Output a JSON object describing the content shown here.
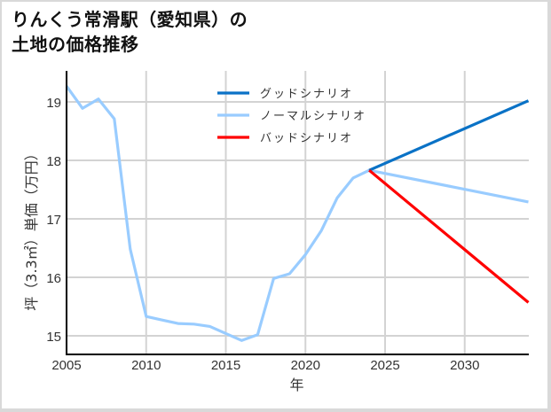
{
  "title": {
    "line1": "りんくう常滑駅（愛知県）の",
    "line2": "土地の価格推移"
  },
  "colors": {
    "good": "#0a72c6",
    "normal": "#99ccff",
    "bad": "#ff0000",
    "grid": "#d3d3d3",
    "axis": "#000000"
  },
  "chart_data": {
    "type": "line",
    "title": "りんくう常滑駅（愛知県）の土地の価格推移",
    "xlabel": "年",
    "ylabel": "坪（3.3㎡）単価（万円）",
    "xlim": [
      2005,
      2034
    ],
    "ylim": [
      14.7,
      19.5
    ],
    "x_ticks": [
      2005,
      2010,
      2015,
      2020,
      2025,
      2030
    ],
    "y_ticks": [
      15,
      16,
      17,
      18,
      19
    ],
    "grid": true,
    "legend_position": "upper center",
    "series": [
      {
        "name": "グッドシナリオ",
        "color": "#0a72c6",
        "x": [
          2024,
          2034
        ],
        "values": [
          17.83,
          19.02
        ]
      },
      {
        "name": "ノーマルシナリオ",
        "color": "#99ccff",
        "x": [
          2005,
          2006,
          2007,
          2008,
          2009,
          2010,
          2011,
          2012,
          2013,
          2014,
          2015,
          2016,
          2017,
          2018,
          2019,
          2020,
          2021,
          2022,
          2023,
          2024,
          2034
        ],
        "values": [
          19.27,
          18.89,
          19.05,
          18.71,
          16.48,
          15.33,
          15.27,
          15.21,
          15.2,
          15.16,
          15.04,
          14.92,
          15.02,
          15.98,
          16.06,
          16.39,
          16.8,
          17.36,
          17.7,
          17.83,
          17.29
        ]
      },
      {
        "name": "バッドシナリオ",
        "color": "#ff0000",
        "x": [
          2024,
          2034
        ],
        "values": [
          17.83,
          15.57
        ]
      }
    ]
  }
}
